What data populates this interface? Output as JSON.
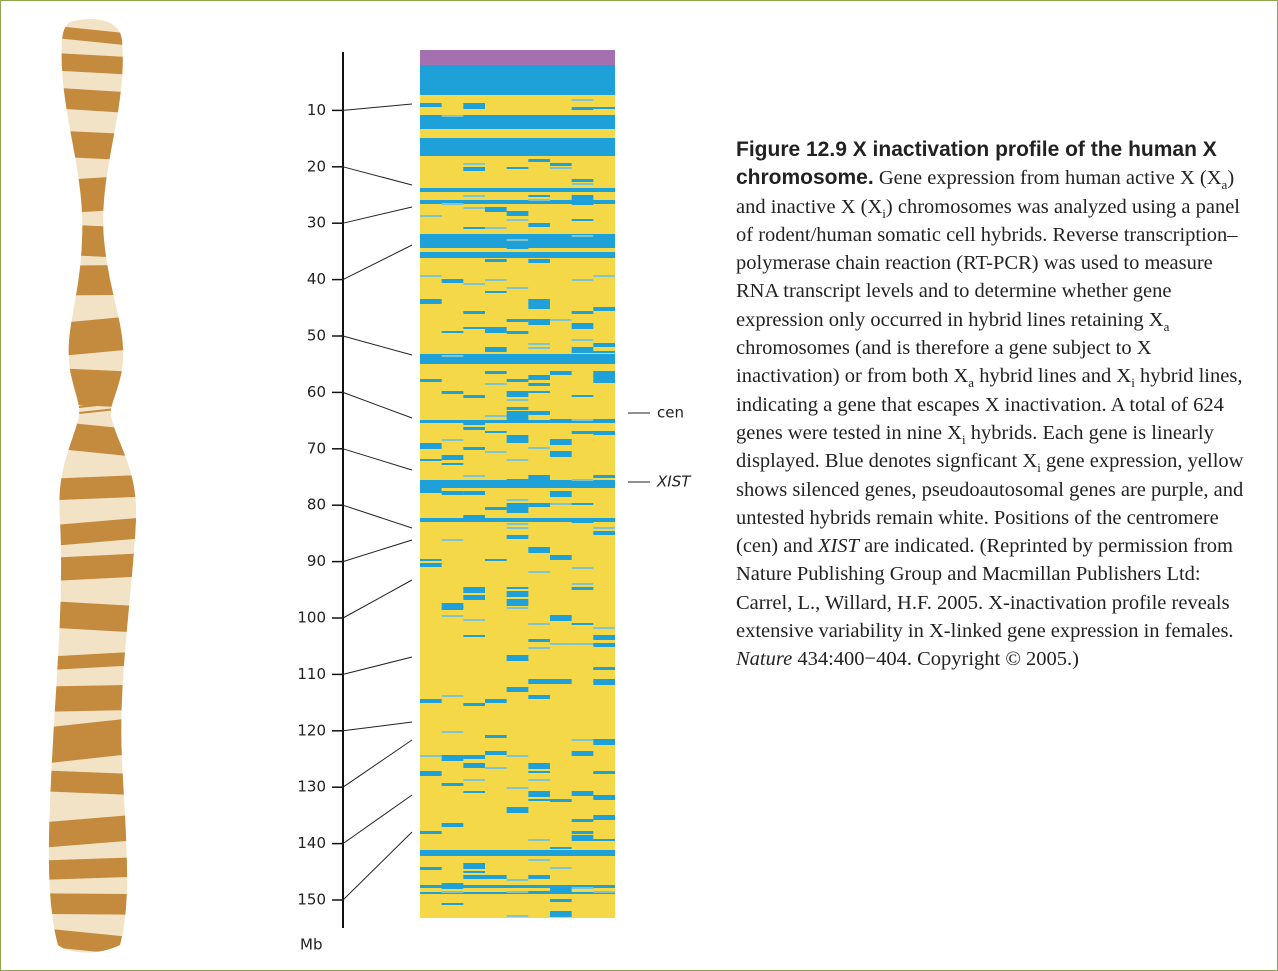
{
  "figure": {
    "scale": {
      "ticks": [
        10,
        20,
        30,
        40,
        50,
        60,
        70,
        80,
        90,
        100,
        110,
        120,
        130,
        140,
        150
      ],
      "unit": "Mb"
    },
    "markers": [
      "cen",
      "XIST"
    ],
    "caption": {
      "title": "Figure 12.9 X inactivation profile of the human X chromosome.",
      "body": [
        " Gene expression from human active X (X",
        "a",
        ") and inactive X (X",
        "i",
        ") chromosomes was analyzed using a panel of rodent/human somatic cell hybrids. Reverse transcription–polymerase chain reaction (RT-PCR) was used to measure RNA transcript levels and to determine whether gene expression only occurred in hybrid lines retaining X",
        "a",
        " chromosomes (and is therefore a gene subject to X inactivation) or from both X",
        "a",
        " hybrid lines and X",
        "i",
        " hybrid lines, indicating a gene that escapes X inactivation. A total of 624 genes were tested in nine X",
        "i",
        " hybrids. Each gene is linearly displayed. Blue denotes signficant X",
        "i",
        " gene expression, yellow shows silenced genes, pseudoautosomal genes are purple, and untested hybrids remain white. Positions of the centromere (cen) and ",
        "XIST",
        " are indicated. (Reprinted by permission from Nature Publishing Group and Macmillan Publishers Ltd: Carrel, L., Willard, H.F. 2005. X-inactivation profile reveals extensive variability in X-linked gene expression in females. ",
        "Nature",
        " 434:400−404. Copyright © 2005.)"
      ]
    }
  }
}
